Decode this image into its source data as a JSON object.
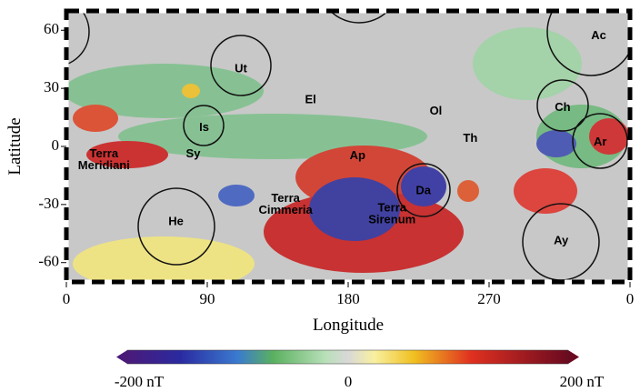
{
  "chart_data": {
    "type": "map",
    "xlabel": "Longitude",
    "ylabel": "Latitude",
    "xlim": [
      0,
      360
    ],
    "ylim": [
      -70,
      70
    ],
    "xticks": [
      0,
      90,
      180,
      270,
      {
        "value": 360,
        "label": "0"
      }
    ],
    "yticks": [
      60,
      30,
      0,
      -30,
      -60
    ],
    "annotations": [
      {
        "lines": [
          "Ut"
        ],
        "x": 111.5,
        "y": 40
      },
      {
        "lines": [
          "Ac"
        ],
        "x": 340,
        "y": 57
      },
      {
        "lines": [
          "Is"
        ],
        "x": 88,
        "y": 9.5
      },
      {
        "lines": [
          "El"
        ],
        "x": 156,
        "y": 24
      },
      {
        "lines": [
          "Ol"
        ],
        "x": 236,
        "y": 18
      },
      {
        "lines": [
          "Ch"
        ],
        "x": 317,
        "y": 20
      },
      {
        "lines": [
          "Ar"
        ],
        "x": 341,
        "y": 2
      },
      {
        "lines": [
          "Th"
        ],
        "x": 258,
        "y": 4
      },
      {
        "lines": [
          "Terra",
          "Meridiani"
        ],
        "x": 24,
        "y": -7
      },
      {
        "lines": [
          "Sy"
        ],
        "x": 81,
        "y": -4
      },
      {
        "lines": [
          "Ap"
        ],
        "x": 186,
        "y": -5
      },
      {
        "lines": [
          "Terra",
          "Cimmeria"
        ],
        "x": 140,
        "y": -30
      },
      {
        "lines": [
          "Terra",
          "Sirenum"
        ],
        "x": 208,
        "y": -35
      },
      {
        "lines": [
          "Da"
        ],
        "x": 228,
        "y": -23
      },
      {
        "lines": [
          "He"
        ],
        "x": 70,
        "y": -39
      },
      {
        "lines": [
          "Ay"
        ],
        "x": 316,
        "y": -49
      }
    ],
    "colorbar": {
      "labels": [
        "-200 nT",
        "0",
        "200 nT"
      ]
    }
  }
}
